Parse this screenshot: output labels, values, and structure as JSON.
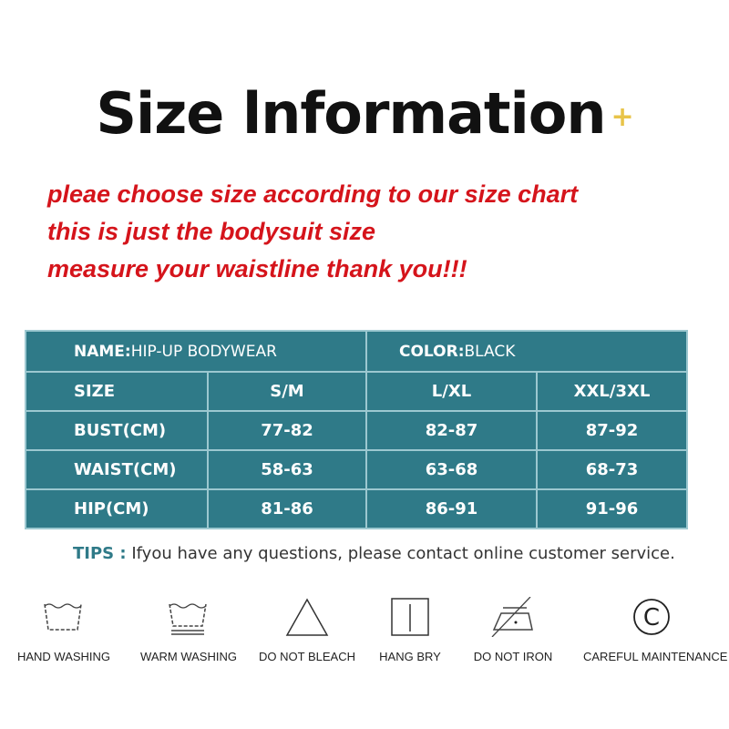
{
  "title": "Size lnformation",
  "title_mark": "+",
  "notes": [
    "pleae choose size according to our size chart",
    "this is just the bodysuit size",
    "measure your waistline thank you!!!"
  ],
  "table": {
    "name_label": "NAME:",
    "name_value": "HIP-UP BODYWEAR",
    "color_label": "COLOR:",
    "color_value": "BLACK",
    "header": [
      "SIZE",
      "S/M",
      "L/XL",
      "XXL/3XL"
    ],
    "rows": [
      [
        "BUST(CM)",
        "77-82",
        "82-87",
        "87-92"
      ],
      [
        "WAIST(CM)",
        "58-63",
        "63-68",
        "68-73"
      ],
      [
        "HIP(CM)",
        "81-86",
        "86-91",
        "91-96"
      ]
    ]
  },
  "tips": {
    "label": "TIPS :",
    "text": " Ifyou have any questions, please contact online customer service."
  },
  "care": [
    {
      "icon": "hand-wash-icon",
      "label": "HAND WASHING"
    },
    {
      "icon": "warm-wash-icon",
      "label": "WARM WASHING"
    },
    {
      "icon": "do-not-bleach-icon",
      "label": "DO NOT BLEACH"
    },
    {
      "icon": "hang-dry-icon",
      "label": "HANG BRY"
    },
    {
      "icon": "do-not-iron-icon",
      "label": "DO NOT IRON"
    },
    {
      "icon": "careful-maintenance-icon",
      "label": "CAREFUL MAINTENANCE"
    }
  ],
  "colors": {
    "table": "#2f7a88",
    "notes": "#d5141b",
    "accent": "#e8c44a"
  }
}
